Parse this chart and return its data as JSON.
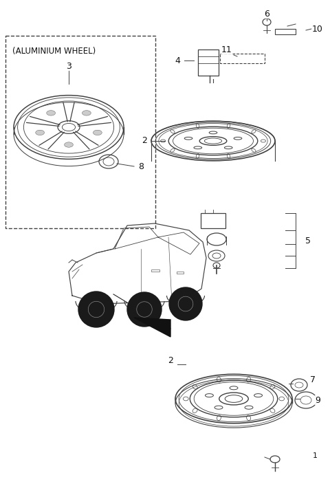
{
  "bg_color": "#ffffff",
  "line_color": "#404040",
  "label_color": "#111111",
  "fig_width": 4.8,
  "fig_height": 7.2,
  "dpi": 100,
  "aluminium_label": "(ALUMINIUM WHEEL)"
}
